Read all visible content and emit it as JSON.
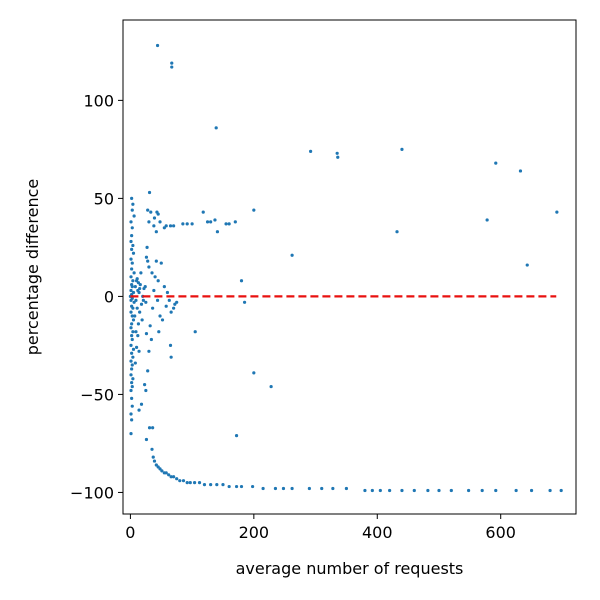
{
  "chart_data": {
    "type": "scatter",
    "title": "",
    "xlabel": "average number of requests",
    "ylabel": "percentage difference",
    "xlim": [
      -12,
      722
    ],
    "ylim": [
      -111,
      141
    ],
    "xticks": [
      0,
      200,
      400,
      600
    ],
    "xtick_labels": [
      "0",
      "200",
      "400",
      "600"
    ],
    "yticks": [
      -100,
      -50,
      0,
      50,
      100
    ],
    "ytick_labels": [
      "−100",
      "−50",
      "0",
      "50",
      "100"
    ],
    "grid": false,
    "legend": "none",
    "colors": {
      "points": "#1f77b4",
      "reference_line": "#e8110f"
    },
    "reference_line": {
      "y": 0,
      "x": [
        0,
        690
      ],
      "style": "dashed"
    },
    "points": [
      [
        44,
        128
      ],
      [
        67,
        119
      ],
      [
        67,
        117
      ],
      [
        139,
        86
      ],
      [
        292,
        74
      ],
      [
        335,
        73
      ],
      [
        336,
        71
      ],
      [
        440,
        75
      ],
      [
        592,
        68
      ],
      [
        632,
        64
      ],
      [
        578,
        39
      ],
      [
        691,
        43
      ],
      [
        643,
        16
      ],
      [
        432,
        33
      ],
      [
        200,
        44
      ],
      [
        262,
        21
      ],
      [
        2,
        50
      ],
      [
        4,
        47
      ],
      [
        3,
        44
      ],
      [
        6,
        41
      ],
      [
        1,
        38
      ],
      [
        3,
        35
      ],
      [
        2,
        31
      ],
      [
        1,
        28
      ],
      [
        4,
        26
      ],
      [
        2,
        24
      ],
      [
        5,
        22
      ],
      [
        1,
        19
      ],
      [
        3,
        17
      ],
      [
        2,
        14
      ],
      [
        6,
        12
      ],
      [
        1,
        10
      ],
      [
        4,
        8
      ],
      [
        2,
        6
      ],
      [
        3,
        5
      ],
      [
        1,
        3
      ],
      [
        5,
        2
      ],
      [
        2,
        1
      ],
      [
        0,
        0
      ],
      [
        3,
        -1
      ],
      [
        1,
        -2
      ],
      [
        6,
        -3
      ],
      [
        2,
        -5
      ],
      [
        4,
        -6
      ],
      [
        1,
        -8
      ],
      [
        3,
        -10
      ],
      [
        5,
        -12
      ],
      [
        2,
        -14
      ],
      [
        1,
        -16
      ],
      [
        4,
        -18
      ],
      [
        2,
        -20
      ],
      [
        3,
        -22
      ],
      [
        1,
        -25
      ],
      [
        5,
        -27
      ],
      [
        2,
        -29
      ],
      [
        4,
        -31
      ],
      [
        1,
        -33
      ],
      [
        3,
        -35
      ],
      [
        2,
        -37
      ],
      [
        1,
        -40
      ],
      [
        4,
        -42
      ],
      [
        2,
        -44
      ],
      [
        3,
        -46
      ],
      [
        1,
        -48
      ],
      [
        2,
        -52
      ],
      [
        3,
        -56
      ],
      [
        1,
        -60
      ],
      [
        2,
        -63
      ],
      [
        1,
        -70
      ],
      [
        8,
        5
      ],
      [
        10,
        8
      ],
      [
        12,
        3
      ],
      [
        9,
        -2
      ],
      [
        11,
        -6
      ],
      [
        7,
        -10
      ],
      [
        13,
        -14
      ],
      [
        9,
        -18
      ],
      [
        14,
        2
      ],
      [
        16,
        6
      ],
      [
        18,
        -4
      ],
      [
        15,
        -8
      ],
      [
        20,
        0
      ],
      [
        22,
        4
      ],
      [
        17,
        12
      ],
      [
        19,
        -12
      ],
      [
        12,
        -20
      ],
      [
        10,
        -26
      ],
      [
        8,
        -34
      ],
      [
        14,
        -28
      ],
      [
        11,
        9
      ],
      [
        13,
        7
      ],
      [
        15,
        4
      ],
      [
        21,
        -2
      ],
      [
        24,
        5
      ],
      [
        25,
        -3
      ],
      [
        28,
        44
      ],
      [
        33,
        43
      ],
      [
        30,
        38
      ],
      [
        38,
        36
      ],
      [
        43,
        43
      ],
      [
        45,
        42
      ],
      [
        48,
        38
      ],
      [
        42,
        33
      ],
      [
        55,
        35
      ],
      [
        58,
        36
      ],
      [
        65,
        36
      ],
      [
        70,
        36
      ],
      [
        85,
        37
      ],
      [
        92,
        37
      ],
      [
        100,
        37
      ],
      [
        118,
        43
      ],
      [
        125,
        38
      ],
      [
        130,
        38
      ],
      [
        137,
        39
      ],
      [
        141,
        33
      ],
      [
        155,
        37
      ],
      [
        160,
        37
      ],
      [
        170,
        38
      ],
      [
        31,
        53
      ],
      [
        39,
        40
      ],
      [
        26,
        20
      ],
      [
        27,
        25
      ],
      [
        28,
        18
      ],
      [
        30,
        15
      ],
      [
        35,
        12
      ],
      [
        40,
        10
      ],
      [
        45,
        8
      ],
      [
        42,
        18
      ],
      [
        50,
        17
      ],
      [
        55,
        5
      ],
      [
        60,
        2
      ],
      [
        63,
        -2
      ],
      [
        58,
        -5
      ],
      [
        66,
        -8
      ],
      [
        70,
        -6
      ],
      [
        72,
        -4
      ],
      [
        75,
        -3
      ],
      [
        38,
        3
      ],
      [
        36,
        -6
      ],
      [
        44,
        -2
      ],
      [
        48,
        -10
      ],
      [
        52,
        -12
      ],
      [
        46,
        -18
      ],
      [
        32,
        -15
      ],
      [
        34,
        -22
      ],
      [
        26,
        -19
      ],
      [
        30,
        -28
      ],
      [
        28,
        -38
      ],
      [
        25,
        -48
      ],
      [
        18,
        -55
      ],
      [
        14,
        -58
      ],
      [
        23,
        -45
      ],
      [
        65,
        -25
      ],
      [
        66,
        -31
      ],
      [
        105,
        -18
      ],
      [
        180,
        8
      ],
      [
        185,
        -3
      ],
      [
        200,
        -39
      ],
      [
        228,
        -46
      ],
      [
        172,
        -71
      ],
      [
        26,
        -73
      ],
      [
        31,
        -67
      ],
      [
        36,
        -67
      ],
      [
        35,
        -78
      ],
      [
        37,
        -82
      ],
      [
        39,
        -84
      ],
      [
        42,
        -86
      ],
      [
        45,
        -87
      ],
      [
        48,
        -88
      ],
      [
        51,
        -89
      ],
      [
        55,
        -90
      ],
      [
        58,
        -90
      ],
      [
        62,
        -91
      ],
      [
        66,
        -92
      ],
      [
        70,
        -92
      ],
      [
        75,
        -93
      ],
      [
        80,
        -94
      ],
      [
        86,
        -94
      ],
      [
        92,
        -95
      ],
      [
        97,
        -95
      ],
      [
        104,
        -95
      ],
      [
        112,
        -95
      ],
      [
        120,
        -96
      ],
      [
        130,
        -96
      ],
      [
        140,
        -96
      ],
      [
        150,
        -96
      ],
      [
        160,
        -97
      ],
      [
        172,
        -97
      ],
      [
        180,
        -97
      ],
      [
        198,
        -97
      ],
      [
        215,
        -98
      ],
      [
        235,
        -98
      ],
      [
        248,
        -98
      ],
      [
        262,
        -98
      ],
      [
        290,
        -98
      ],
      [
        310,
        -98
      ],
      [
        328,
        -98
      ],
      [
        350,
        -98
      ],
      [
        380,
        -99
      ],
      [
        392,
        -99
      ],
      [
        405,
        -99
      ],
      [
        420,
        -99
      ],
      [
        440,
        -99
      ],
      [
        460,
        -99
      ],
      [
        482,
        -99
      ],
      [
        500,
        -99
      ],
      [
        520,
        -99
      ],
      [
        548,
        -99
      ],
      [
        570,
        -99
      ],
      [
        592,
        -99
      ],
      [
        625,
        -99
      ],
      [
        650,
        -99
      ],
      [
        680,
        -99
      ],
      [
        698,
        -99
      ]
    ]
  }
}
